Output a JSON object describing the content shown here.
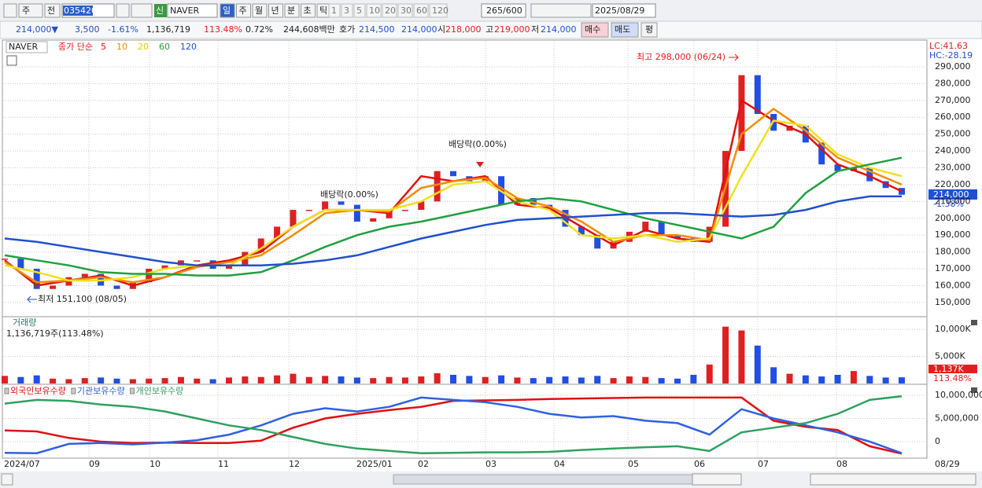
{
  "toolbar": {
    "type_button": "주",
    "prev_button": "전",
    "code": "035420",
    "new_badge": "신",
    "name": "NAVER",
    "periods": [
      "일",
      "주",
      "월",
      "년",
      "분",
      "초",
      "틱"
    ],
    "intervals": [
      "1",
      "3",
      "5",
      "10",
      "20",
      "30",
      "60",
      "120"
    ],
    "count": "265/600",
    "date": "2025/08/29"
  },
  "quote_bar": {
    "price": "214,000▼",
    "change": "3,500",
    "change_pct": "-1.61%",
    "volume": "1,136,719",
    "volume_ratio": "113.48%",
    "turnover_pct": "0.72%",
    "amount": "244,608백만",
    "ask_label": "호가",
    "ask": "214,500",
    "bid": "214,000",
    "open_label": "시",
    "open": "218,000",
    "high_label": "고",
    "high": "219,000",
    "low_label": "저",
    "low": "214,000",
    "buy": "매수",
    "sell": "매도",
    "avg": "평"
  },
  "price_panel": {
    "name": "NAVER",
    "ma_label": "종가 단순",
    "high_note": "최고 298,000 (06/24)",
    "low_note": "최저 151,100 (08/05)",
    "dividend_notes": [
      "배당락(0.00%)",
      "배당락(0.00%)"
    ],
    "lc": "LC:41.63",
    "hc": "HC:-28.19",
    "last_label": "214,000",
    "last_change": "-1.38%",
    "up_color": "#e02020",
    "down_color": "#2050e0",
    "ylim": [
      142000,
      305400
    ],
    "yticks": [
      {
        "value": 150000,
        "label": "150,000"
      },
      {
        "value": 160000,
        "label": "160,000"
      },
      {
        "value": 170000,
        "label": "170,000"
      },
      {
        "value": 180000,
        "label": "180,000"
      },
      {
        "value": 190000,
        "label": "190,000"
      },
      {
        "value": 200000,
        "label": "200,000"
      },
      {
        "value": 210000,
        "label": "210,000"
      },
      {
        "value": 220000,
        "label": "220,000"
      },
      {
        "value": 230000,
        "label": "230,000"
      },
      {
        "value": 240000,
        "label": "240,000"
      },
      {
        "value": 250000,
        "label": "250,000"
      },
      {
        "value": 260000,
        "label": "260,000"
      },
      {
        "value": 270000,
        "label": "270,000"
      },
      {
        "value": 280000,
        "label": "280,000"
      },
      {
        "value": 290000,
        "label": "290,000"
      }
    ],
    "close": [
      176000,
      170000,
      158000,
      160000,
      165000,
      167000,
      160000,
      158000,
      162000,
      170000,
      172000,
      175000,
      175000,
      170000,
      172000,
      180000,
      188000,
      195000,
      205000,
      205000,
      210000,
      208000,
      198000,
      200000,
      205000,
      205000,
      210000,
      228000,
      225000,
      222000,
      225000,
      208000,
      212000,
      208000,
      205000,
      195000,
      190000,
      182000,
      186000,
      192000,
      198000,
      190000,
      188000,
      186000,
      195000,
      240000,
      285000,
      262000,
      252000,
      255000,
      245000,
      232000,
      228000,
      230000,
      222000,
      218000,
      214000
    ],
    "series": [
      {
        "name": "5",
        "color": "#e01010",
        "values": [
          175000,
          160000,
          163000,
          166000,
          160000,
          165000,
          172000,
          175000,
          180000,
          195000,
          205000,
          205000,
          203000,
          225000,
          222000,
          225000,
          208000,
          206000,
          195000,
          184000,
          193000,
          188000,
          186000,
          270000,
          258000,
          250000,
          232000,
          225000,
          216000
        ]
      },
      {
        "name": "10",
        "color": "#f08c00",
        "values": [
          174000,
          162000,
          163000,
          165000,
          162000,
          165000,
          171000,
          174000,
          178000,
          190000,
          203000,
          205000,
          204000,
          218000,
          222000,
          224000,
          212000,
          207000,
          198000,
          186000,
          190000,
          190000,
          187000,
          250000,
          265000,
          252000,
          236000,
          228000,
          220000
        ]
      },
      {
        "name": "20",
        "color": "#f0e020",
        "values": [
          172000,
          168000,
          163000,
          163000,
          165000,
          170000,
          172000,
          172000,
          182000,
          195000,
          205000,
          205000,
          205000,
          210000,
          220000,
          222000,
          210000,
          205000,
          190000,
          188000,
          190000,
          186000,
          188000,
          225000,
          258000,
          255000,
          238000,
          230000,
          225000
        ]
      },
      {
        "name": "60",
        "color": "#20a040",
        "values": [
          178000,
          175000,
          172000,
          168000,
          167000,
          167000,
          166000,
          166000,
          168000,
          175000,
          183000,
          190000,
          195000,
          198000,
          202000,
          206000,
          210000,
          212000,
          210000,
          205000,
          200000,
          196000,
          192000,
          188000,
          195000,
          215000,
          228000,
          232000,
          236000
        ]
      },
      {
        "name": "120",
        "color": "#2050d0",
        "values": [
          188000,
          186000,
          183000,
          180000,
          177000,
          174000,
          172000,
          172000,
          172000,
          173000,
          175000,
          178000,
          183000,
          188000,
          192000,
          196000,
          199000,
          200000,
          201000,
          202000,
          203000,
          203000,
          202000,
          201000,
          202000,
          205000,
          210000,
          213000,
          213000
        ]
      }
    ]
  },
  "volume_panel": {
    "title": "거래량",
    "info": "1,136,719주(113.48%)",
    "last_label": "1,137K",
    "last_ratio": "113.48%",
    "ylim": [
      0,
      12200
    ],
    "yticks": [
      {
        "value": 5000,
        "label": "5,000K"
      },
      {
        "value": 10000,
        "label": "10,000K"
      }
    ],
    "values": [
      1400,
      1200,
      1500,
      900,
      800,
      1000,
      1100,
      900,
      800,
      900,
      1000,
      1200,
      900,
      800,
      1100,
      1300,
      1200,
      1500,
      1800,
      1200,
      1400,
      1300,
      1100,
      1000,
      1200,
      1100,
      1300,
      1900,
      1600,
      1400,
      1200,
      1500,
      1100,
      1000,
      1200,
      1300,
      1100,
      1400,
      1000,
      1300,
      1200,
      1000,
      900,
      1600,
      3500,
      10500,
      9800,
      7000,
      3000,
      1800,
      1500,
      1300,
      1600,
      2300,
      1400,
      1100,
      1137
    ]
  },
  "holdings_panel": {
    "ylim": [
      -3390000,
      12200000
    ],
    "yticks": [
      0,
      {
        "value": 5000000,
        "label": "5,000,000"
      },
      {
        "value": 10000000,
        "label": "10,000,000"
      }
    ],
    "series": [
      {
        "name": "외국인보유수량",
        "color": "#e01010",
        "values": [
          2400000,
          2200000,
          800000,
          0,
          -300000,
          -200000,
          -300000,
          -300000,
          200000,
          3000000,
          5000000,
          6000000,
          6800000,
          7500000,
          8800000,
          8900000,
          9000000,
          9200000,
          9300000,
          9400000,
          9500000,
          9500000,
          9500000,
          9500000,
          4500000,
          3200000,
          2500000,
          -1000000,
          -2600000
        ]
      },
      {
        "name": "기관보유수량",
        "color": "#3060e0",
        "values": [
          -2400000,
          -2500000,
          -500000,
          -300000,
          -600000,
          -200000,
          300000,
          1500000,
          3500000,
          6000000,
          7200000,
          6500000,
          7500000,
          9500000,
          9000000,
          8500000,
          7500000,
          6000000,
          5200000,
          5500000,
          4500000,
          4000000,
          1500000,
          7000000,
          5000000,
          3500000,
          2000000,
          0,
          -2500000
        ]
      },
      {
        "name": "개인보유수량",
        "color": "#30a060",
        "values": [
          8200000,
          9000000,
          8800000,
          8000000,
          7500000,
          6500000,
          5000000,
          3500000,
          2500000,
          1000000,
          -500000,
          -1500000,
          -2000000,
          -2500000,
          -2400000,
          -2300000,
          -2300000,
          -2200000,
          -1800000,
          -1500000,
          -1200000,
          -1000000,
          -2000000,
          2000000,
          3000000,
          4000000,
          6000000,
          9000000,
          9800000
        ]
      }
    ]
  },
  "x_axis": {
    "labels": [
      "2024/07",
      "09",
      "10",
      "11",
      "12",
      "2025/01",
      "02",
      "03",
      "04",
      "05",
      "06",
      "07",
      "08",
      "08/29"
    ]
  }
}
